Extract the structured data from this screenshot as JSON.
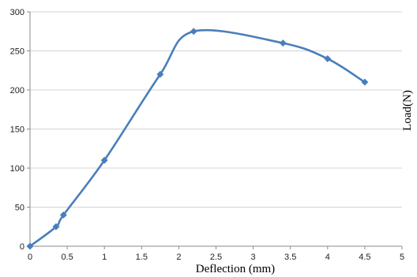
{
  "chart_data": {
    "type": "scatter",
    "title": "",
    "xlabel": "Deflection (mm)",
    "ylabel": "Load(N)",
    "xlim": [
      0,
      5
    ],
    "ylim": [
      0,
      300
    ],
    "xticks": [
      0,
      0.5,
      1,
      1.5,
      2,
      2.5,
      3,
      3.5,
      4,
      4.5,
      5
    ],
    "xtick_labels": [
      "0",
      "0.5",
      "1",
      "1.5",
      "2",
      "2.5",
      "3",
      "3.5",
      "4",
      "4.5",
      "5"
    ],
    "yticks": [
      0,
      50,
      100,
      150,
      200,
      250,
      300
    ],
    "ytick_labels": [
      "0",
      "50",
      "100",
      "150",
      "200",
      "250",
      "300"
    ],
    "grid": true,
    "legend": "none",
    "line_style": "smoothed line with diamond markers",
    "series": [
      {
        "x": [
          0,
          0.35,
          0.45,
          1.0,
          1.75,
          2.2,
          3.4,
          4.0,
          4.5
        ],
        "y": [
          0,
          25,
          40,
          110,
          220,
          275,
          260,
          240,
          210
        ]
      }
    ],
    "colors": {
      "series": "#4a7ebb",
      "grid": "#d4d4d4",
      "axis": "#8a8a8a"
    }
  }
}
